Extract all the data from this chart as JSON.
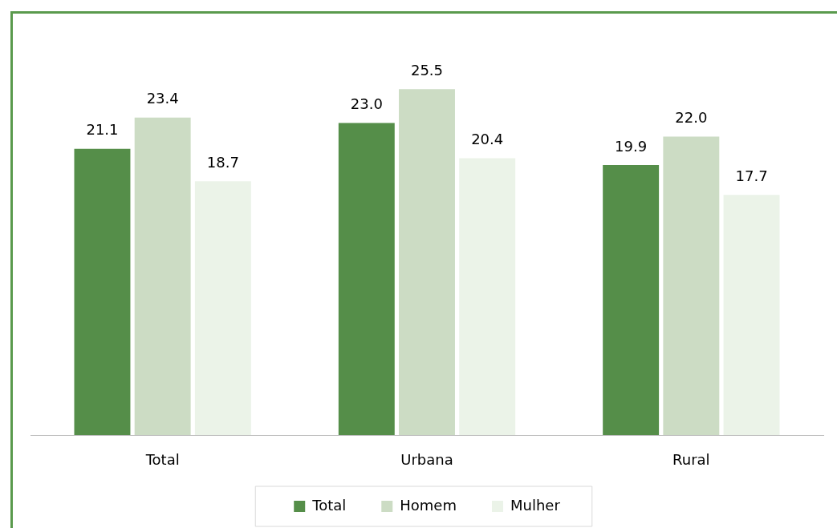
{
  "chart_data": {
    "type": "bar",
    "categories": [
      "Total",
      "Urbana",
      "Rural"
    ],
    "series": [
      {
        "name": "Total",
        "color": "#558e49",
        "values": [
          21.1,
          23.0,
          19.9
        ],
        "value_labels": [
          "21.1",
          "23.0",
          "19.9"
        ]
      },
      {
        "name": "Homem",
        "color": "#ccdcc4",
        "values": [
          23.4,
          25.5,
          22.0
        ],
        "value_labels": [
          "23.4",
          "25.5",
          "22.0"
        ]
      },
      {
        "name": "Mulher",
        "color": "#ebf3e8",
        "values": [
          18.7,
          20.4,
          17.7
        ],
        "value_labels": [
          "18.7",
          "20.4",
          "17.7"
        ]
      }
    ],
    "tick_labels": "x",
    "legend": "bottom"
  }
}
